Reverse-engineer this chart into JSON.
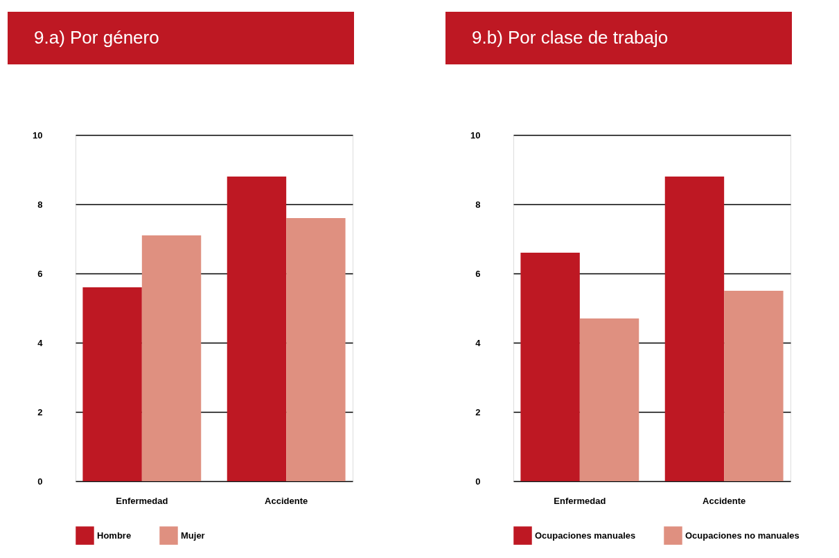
{
  "chart_data": [
    {
      "type": "bar",
      "title": "9.a) Por género",
      "categories": [
        "Enfermedad",
        "Accidente"
      ],
      "series": [
        {
          "name": "Hombre",
          "color": "#be1823",
          "values": [
            5.6,
            8.8
          ]
        },
        {
          "name": "Mujer",
          "color": "#df9080",
          "values": [
            7.1,
            7.6
          ]
        }
      ],
      "ylim": [
        0,
        10
      ],
      "yticks": [
        0,
        2,
        4,
        6,
        8,
        10
      ],
      "grid": "y",
      "legend": "bottom"
    },
    {
      "type": "bar",
      "title": "9.b) Por clase de trabajo",
      "categories": [
        "Enfermedad",
        "Accidente"
      ],
      "series": [
        {
          "name": "Ocupaciones manuales",
          "color": "#be1823",
          "values": [
            6.6,
            8.8
          ]
        },
        {
          "name": "Ocupaciones no manuales",
          "color": "#df9080",
          "values": [
            4.7,
            5.5
          ]
        }
      ],
      "ylim": [
        0,
        10
      ],
      "yticks": [
        0,
        2,
        4,
        6,
        8,
        10
      ],
      "grid": "y",
      "legend": "bottom"
    }
  ]
}
